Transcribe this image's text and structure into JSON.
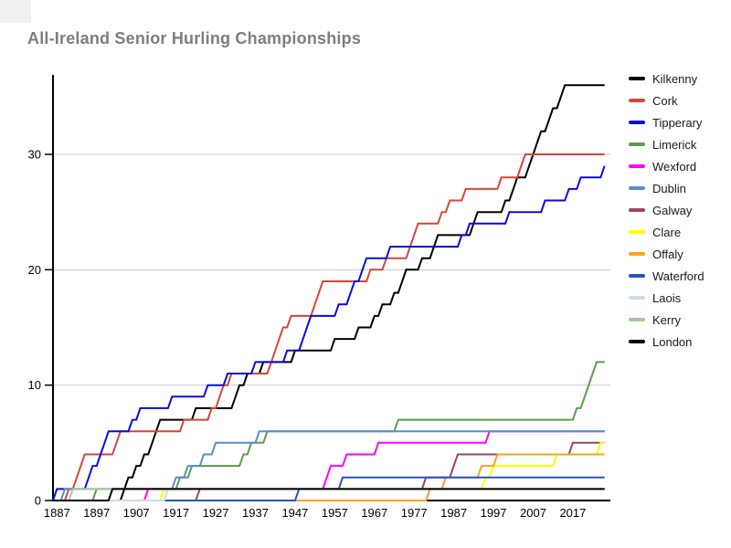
{
  "header": {
    "title": "All-Ireland Senior Hurling Championships",
    "title_color": "#7e7e7e"
  },
  "chart_data": {
    "type": "line",
    "title": "All-Ireland Senior Hurling Championships",
    "mode": "cumulative-wins-by-year",
    "xlabel": "",
    "ylabel": "",
    "x_ticks": [
      1887,
      1897,
      1907,
      1917,
      1927,
      1937,
      1947,
      1957,
      1967,
      1977,
      1987,
      1997,
      2007,
      2017
    ],
    "y_ticks": [
      0,
      10,
      20,
      30
    ],
    "x_range": [
      1886,
      2026
    ],
    "y_range": [
      0,
      36.9
    ],
    "grid": "horizontal-only",
    "grid_color": "#cccccc",
    "axis_color": "#000000",
    "legend_position": "right",
    "line_width": 2,
    "series": [
      {
        "name": "Kilkenny",
        "color": "#000000",
        "total": 36,
        "win_years": [
          1904,
          1905,
          1907,
          1909,
          1911,
          1912,
          1913,
          1922,
          1932,
          1933,
          1935,
          1939,
          1947,
          1957,
          1963,
          1967,
          1969,
          1972,
          1974,
          1975,
          1979,
          1982,
          1983,
          1992,
          1993,
          2000,
          2002,
          2003,
          2006,
          2007,
          2008,
          2009,
          2011,
          2012,
          2014,
          2015
        ]
      },
      {
        "name": "Cork",
        "color": "#d9453a",
        "total": 30,
        "win_years": [
          1890,
          1892,
          1893,
          1894,
          1902,
          1903,
          1919,
          1926,
          1928,
          1929,
          1931,
          1941,
          1942,
          1943,
          1944,
          1946,
          1952,
          1953,
          1954,
          1966,
          1970,
          1976,
          1977,
          1978,
          1984,
          1986,
          1990,
          1999,
          2004,
          2005
        ]
      },
      {
        "name": "Tipperary",
        "color": "#0b0bdd",
        "total": 29,
        "win_years": [
          1887,
          1895,
          1896,
          1898,
          1899,
          1900,
          1906,
          1908,
          1916,
          1925,
          1930,
          1937,
          1945,
          1949,
          1950,
          1951,
          1958,
          1961,
          1962,
          1964,
          1965,
          1971,
          1989,
          1991,
          2001,
          2010,
          2016,
          2019,
          2025
        ]
      },
      {
        "name": "Limerick",
        "color": "#5b9c4e",
        "total": 12,
        "win_years": [
          1897,
          1918,
          1921,
          1934,
          1936,
          1940,
          1973,
          2018,
          2020,
          2021,
          2022,
          2023
        ]
      },
      {
        "name": "Wexford",
        "color": "#ff00ff",
        "total": 6,
        "win_years": [
          1910,
          1955,
          1956,
          1960,
          1968,
          1996
        ]
      },
      {
        "name": "Dublin",
        "color": "#5590cc",
        "total": 6,
        "win_years": [
          1889,
          1917,
          1920,
          1924,
          1927,
          1938
        ]
      },
      {
        "name": "Galway",
        "color": "#98485a",
        "total": 5,
        "win_years": [
          1923,
          1980,
          1987,
          1988,
          2017
        ]
      },
      {
        "name": "Clare",
        "color": "#ffff00",
        "total": 5,
        "win_years": [
          1914,
          1995,
          1997,
          2013,
          2024
        ]
      },
      {
        "name": "Offaly",
        "color": "#fca41f",
        "total": 4,
        "win_years": [
          1981,
          1985,
          1994,
          1998
        ]
      },
      {
        "name": "Waterford",
        "color": "#2456c2",
        "total": 2,
        "win_years": [
          1948,
          1959
        ]
      },
      {
        "name": "Laois",
        "color": "#c9daf1",
        "total": 1,
        "win_years": [
          1915
        ]
      },
      {
        "name": "Kerry",
        "color": "#a9c798",
        "total": 1,
        "win_years": [
          1891
        ]
      },
      {
        "name": "London",
        "color": "#000000",
        "total": 1,
        "win_years": [
          1901
        ]
      }
    ]
  }
}
